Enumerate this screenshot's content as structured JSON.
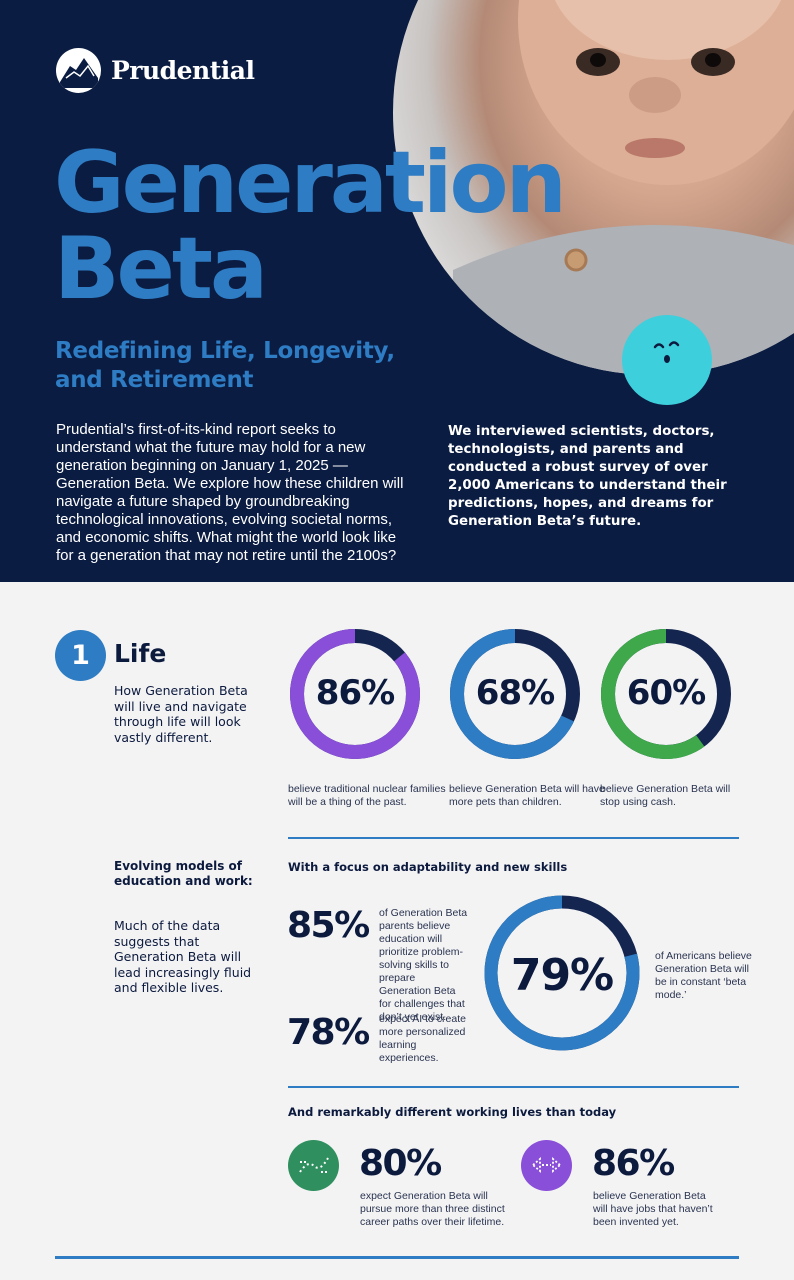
{
  "brand": {
    "name": "Prudential",
    "logo_icon": "rock-of-gibraltar-icon"
  },
  "hero": {
    "title_line1": "Generation",
    "title_line2": "Beta",
    "subtitle_line1": "Redefining Life, Longevity,",
    "subtitle_line2": "and Retirement",
    "intro_left": "Prudential’s first-of-its-kind report seeks to understand what the future may hold for a new generation beginning on January 1, 2025 — Generation Beta. We explore how these children will navigate a future shaped by groundbreaking technological innovations, evolving societal norms, and economic shifts. What might the world look like for a generation that may not retire until the 2100s?",
    "intro_right": "We interviewed scientists, doctors, technologists, and parents and conducted a robust survey of over 2,000 Americans to understand their predictions, hopes, and dreams for Generation Beta’s future.",
    "photo": "baby-photo",
    "decoration": "cyan-face-blob"
  },
  "section": {
    "number": "1",
    "title": "Life",
    "description": "How Generation Beta will live and navigate through life will look vastly different."
  },
  "rings": [
    {
      "value_label": "86%",
      "percent": 86,
      "caption": "believe traditional nuclear families will be a thing of the past.",
      "color": "#8a4fd8"
    },
    {
      "value_label": "68%",
      "percent": 68,
      "caption": "believe Generation Beta will have more pets than children.",
      "color": "#2e7cc3"
    },
    {
      "value_label": "60%",
      "percent": 60,
      "caption": "believe Generation Beta will stop using cash.",
      "color": "#3fa84a"
    }
  ],
  "education": {
    "heading": "Evolving models of education and work:",
    "body": "Much of the data suggests that Generation Beta will lead increasingly fluid and flexible lives.",
    "focus_heading": "With a focus on adaptability and new skills",
    "stat1": {
      "value_label": "85%",
      "text": "of Generation Beta parents believe education will prioritize problem-solving skills to prepare Generation Beta for challenges that don’t yet exist."
    },
    "stat2": {
      "value_label": "78%",
      "text": "expect AI to create more personalized learning experiences."
    },
    "ring": {
      "value_label": "79%",
      "percent": 79,
      "text": "of Americans believe Generation Beta will be in constant ‘beta mode.’",
      "color": "#2e7cc3"
    }
  },
  "work": {
    "heading": "And remarkably different working lives than today",
    "items": [
      {
        "icon": "career-paths-icon",
        "value_label": "80%",
        "text": "expect Generation Beta will pursue more than three distinct career paths over their lifetime.",
        "color": "#2f8f5e"
      },
      {
        "icon": "new-jobs-icon",
        "value_label": "86%",
        "text": "believe Generation Beta will have jobs that haven’t been invented yet.",
        "color": "#8a4fd8"
      }
    ]
  },
  "colors": {
    "navy": "#0b1c42",
    "blue": "#2e7cc3",
    "background": "#f3f3f4",
    "track": "#14254f"
  }
}
